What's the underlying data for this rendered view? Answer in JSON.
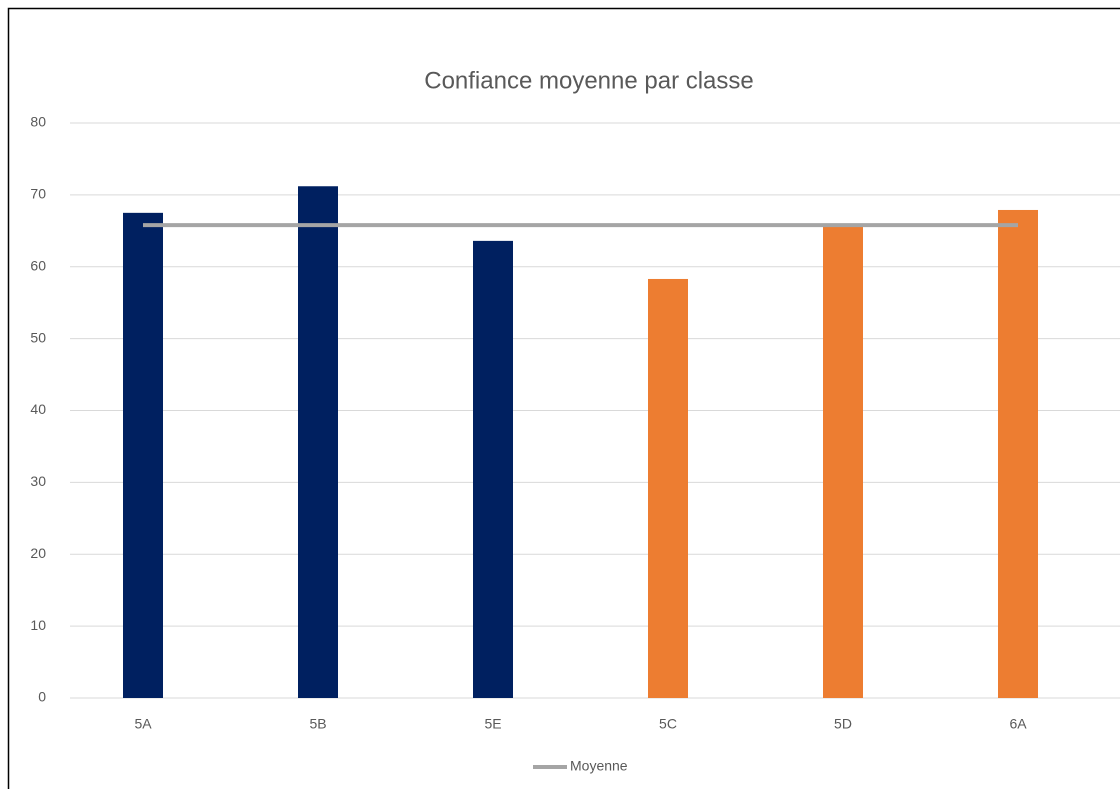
{
  "chart_data": {
    "type": "bar",
    "title": "Confiance moyenne par classe",
    "categories": [
      "5A",
      "5B",
      "5E",
      "5C",
      "5D",
      "6A"
    ],
    "series": [
      {
        "type": "bar",
        "values": [
          67.5,
          71.2,
          63.6,
          58.3,
          65.8,
          67.9
        ],
        "colors": [
          "#002060",
          "#002060",
          "#002060",
          "#ed7d31",
          "#ed7d31",
          "#ed7d31"
        ]
      },
      {
        "type": "line",
        "name": "Moyenne",
        "color": "#a5a5a5",
        "values": [
          65.8,
          65.8,
          65.8,
          65.8,
          65.8,
          65.8
        ]
      }
    ],
    "ylim": [
      0,
      80
    ],
    "yticks": [
      0,
      10,
      20,
      30,
      40,
      50,
      60,
      70,
      80
    ],
    "grid": true,
    "legend": "bottom"
  }
}
